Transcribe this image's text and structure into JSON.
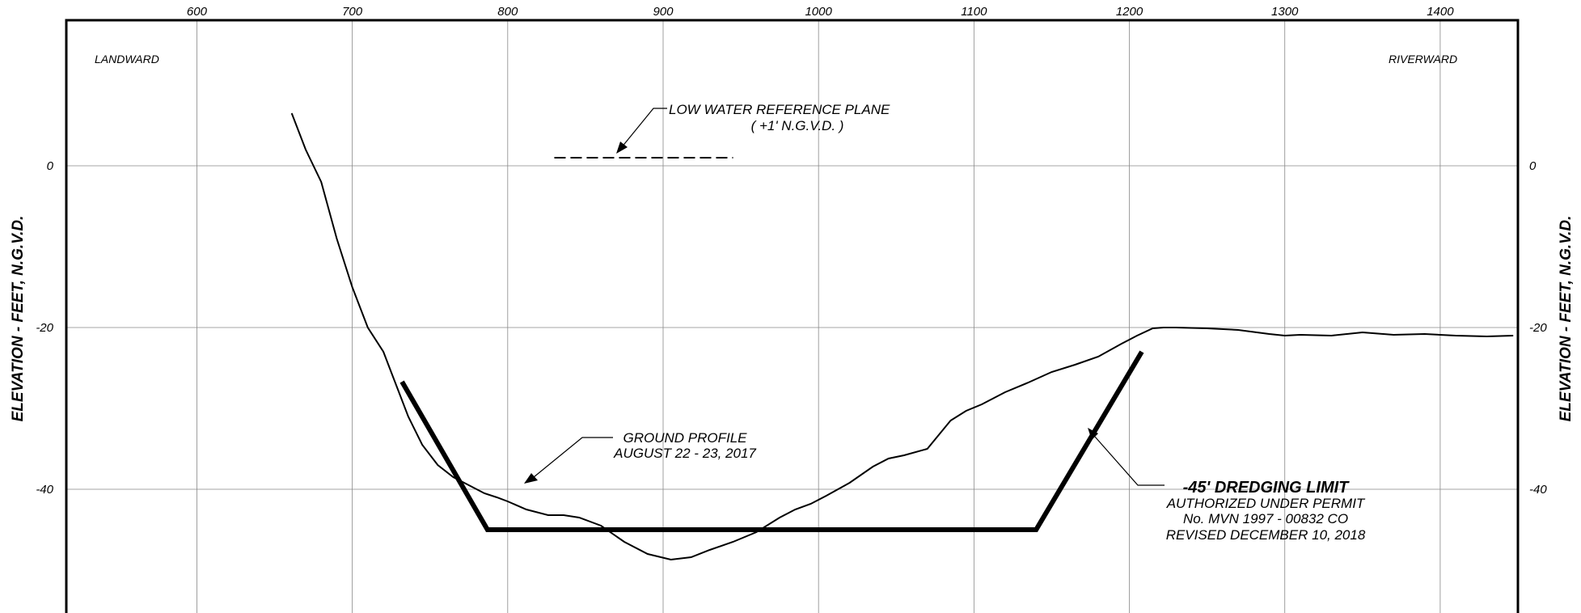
{
  "chart_data": {
    "type": "line",
    "title": "",
    "ylabel_left": "ELEVATION  -  FEET,  N.G.V.D.",
    "ylabel_right": "ELEVATION  -  FEET,  N.G.V.D.",
    "xlim": [
      516,
      1450
    ],
    "ylim": [
      -58,
      18
    ],
    "x_ticks": [
      "600",
      "700",
      "800",
      "900",
      "1000",
      "1100",
      "1200",
      "1300",
      "1400"
    ],
    "x_tick_values": [
      600,
      700,
      800,
      900,
      1000,
      1100,
      1200,
      1300,
      1400
    ],
    "y_ticks_left": [
      "0",
      "-20",
      "-40"
    ],
    "y_ticks_right": [
      "0",
      "-20",
      "-40"
    ],
    "y_tick_values": [
      0,
      -20,
      -40
    ],
    "grid": true,
    "colors": {
      "line": "#000000",
      "grid": "#888888",
      "background": "#ffffff"
    },
    "side_labels": {
      "left": "LANDWARD",
      "right": "RIVERWARD"
    },
    "series": [
      {
        "name": "GROUND PROFILE AUGUST 22 - 23, 2017",
        "style": "thin",
        "x": [
          661,
          670,
          680,
          690,
          700,
          710,
          720,
          726,
          730,
          736,
          745,
          755,
          765,
          775,
          785,
          793,
          800,
          812,
          826,
          836,
          846,
          860,
          875,
          890,
          905,
          918,
          930,
          945,
          960,
          975,
          985,
          995,
          1005,
          1020,
          1035,
          1045,
          1055,
          1070,
          1085,
          1095,
          1105,
          1120,
          1135,
          1150,
          1165,
          1180,
          1195,
          1205,
          1215,
          1222,
          1230,
          1250,
          1270,
          1290,
          1300,
          1310,
          1330,
          1350,
          1370,
          1390,
          1410,
          1430,
          1447
        ],
        "y": [
          6.5,
          2,
          -2,
          -9,
          -15,
          -20,
          -23,
          -26,
          -28,
          -31,
          -34.5,
          -37,
          -38.5,
          -39.5,
          -40.5,
          -41,
          -41.5,
          -42.5,
          -43.2,
          -43.2,
          -43.5,
          -44.5,
          -46.5,
          -48,
          -48.7,
          -48.4,
          -47.5,
          -46.5,
          -45.3,
          -43.5,
          -42.5,
          -41.8,
          -40.8,
          -39.2,
          -37.2,
          -36.2,
          -35.8,
          -35,
          -31.5,
          -30.3,
          -29.5,
          -28,
          -26.8,
          -25.5,
          -24.6,
          -23.6,
          -22,
          -21,
          -20.1,
          -20,
          -20,
          -20.1,
          -20.3,
          -20.8,
          -21,
          -20.9,
          -21,
          -20.6,
          -20.9,
          -20.8,
          -21,
          -21.1,
          -21
        ]
      },
      {
        "name": "-45' DREDGING LIMIT",
        "style": "thick",
        "x": [
          732,
          787,
          1140,
          1208
        ],
        "y": [
          -26.7,
          -45,
          -45,
          -23
        ]
      }
    ],
    "reference_line": {
      "name": "LOW WATER REFERENCE PLANE",
      "x": [
        830,
        945
      ],
      "y": [
        1,
        1
      ],
      "style": "dashed"
    },
    "annotations": {
      "low_water_line1": "LOW  WATER  REFERENCE  PLANE",
      "low_water_line2": "( +1'  N.G.V.D. )",
      "ground_line1": "GROUND  PROFILE",
      "ground_line2": "AUGUST  22 - 23,  2017",
      "dredge_line1": "-45'  DREDGING  LIMIT",
      "dredge_line2": "AUTHORIZED  UNDER  PERMIT",
      "dredge_line3": "No.  MVN  1997 - 00832  CO",
      "dredge_line4": "REVISED  DECEMBER  10,  2018"
    }
  }
}
